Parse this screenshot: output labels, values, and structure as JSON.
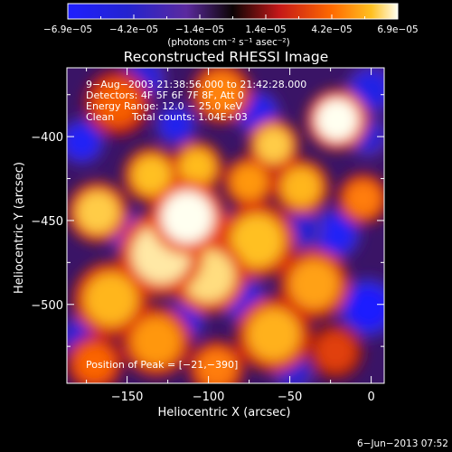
{
  "chart_data": {
    "type": "heatmap",
    "title": "Reconstructed RHESSI Image",
    "xlabel": "Heliocentric X (arcsec)",
    "ylabel": "Heliocentric Y (arcsec)",
    "xlim": [
      -187,
      8
    ],
    "ylim": [
      -547,
      -359
    ],
    "x_ticks": [
      -150,
      -100,
      -50,
      0
    ],
    "y_ticks": [
      -400,
      -450,
      -500
    ],
    "x_tick_labels": [
      "−150",
      "−100",
      "−50",
      "0"
    ],
    "y_tick_labels": [
      "−400",
      "−450",
      "−500"
    ],
    "colorbar": {
      "range": [
        -6.9e-05,
        6.9e-05
      ],
      "tick_labels": [
        "−6.9e−05",
        "−4.2e−05",
        "−1.4e−05",
        "1.4e−05",
        "4.2e−05",
        "6.9e−05"
      ],
      "unit_label": "(photons cm⁻² s⁻¹ asec⁻²)"
    },
    "annotations": {
      "time_range": "9−Aug−2003 21:38:56.000 to 21:42:28.000",
      "detectors": "Detectors: 4F 5F 6F 7F 8F, Att 0",
      "energy": "Energy Range: 12.0 − 25.0 keV",
      "method": "Clean",
      "counts": "Total counts: 1.04E+03",
      "peak": "Position of Peak = [−21,−390]"
    },
    "blobs": [
      {
        "x": -113,
        "y": -448,
        "value": 6.9e-05,
        "r": 16
      },
      {
        "x": -129,
        "y": -470,
        "value": 6.5e-05,
        "r": 18
      },
      {
        "x": -100,
        "y": -483,
        "value": 6.3e-05,
        "r": 16
      },
      {
        "x": -70,
        "y": -462,
        "value": 5.8e-05,
        "r": 16
      },
      {
        "x": -21,
        "y": -390,
        "value": 6.9e-05,
        "r": 13
      },
      {
        "x": -168,
        "y": -445,
        "value": 6e-05,
        "r": 13
      },
      {
        "x": -135,
        "y": -423,
        "value": 5.8e-05,
        "r": 12
      },
      {
        "x": -107,
        "y": -418,
        "value": 5.7e-05,
        "r": 11
      },
      {
        "x": -60,
        "y": -405,
        "value": 6e-05,
        "r": 11
      },
      {
        "x": -75,
        "y": -427,
        "value": 5e-05,
        "r": 11
      },
      {
        "x": -43,
        "y": -430,
        "value": 5.6e-05,
        "r": 12
      },
      {
        "x": -35,
        "y": -488,
        "value": 5.2e-05,
        "r": 15
      },
      {
        "x": -160,
        "y": -497,
        "value": 5.6e-05,
        "r": 16
      },
      {
        "x": -60,
        "y": -518,
        "value": 5.5e-05,
        "r": 16
      },
      {
        "x": -132,
        "y": -522,
        "value": 5e-05,
        "r": 15
      },
      {
        "x": -156,
        "y": -380,
        "value": 3.8e-05,
        "r": 14
      },
      {
        "x": -92,
        "y": -374,
        "value": 4.6e-05,
        "r": 13
      },
      {
        "x": -5,
        "y": -437,
        "value": 4.5e-05,
        "r": 11
      },
      {
        "x": -170,
        "y": -535,
        "value": 4e-05,
        "r": 12
      },
      {
        "x": -95,
        "y": -538,
        "value": 4.5e-05,
        "r": 12
      },
      {
        "x": -22,
        "y": -528,
        "value": 3e-05,
        "r": 12
      },
      {
        "x": -178,
        "y": -403,
        "value": -6.5e-05,
        "r": 10
      },
      {
        "x": -120,
        "y": -393,
        "value": -6e-05,
        "r": 9
      },
      {
        "x": -70,
        "y": -386,
        "value": -6e-05,
        "r": 10
      },
      {
        "x": -150,
        "y": -457,
        "value": -5.5e-05,
        "r": 9
      },
      {
        "x": -22,
        "y": -458,
        "value": -6.5e-05,
        "r": 11
      },
      {
        "x": -2,
        "y": -502,
        "value": -6.9e-05,
        "r": 13
      },
      {
        "x": -78,
        "y": -498,
        "value": -5.5e-05,
        "r": 10
      },
      {
        "x": -115,
        "y": -510,
        "value": -5.5e-05,
        "r": 9
      },
      {
        "x": -178,
        "y": -520,
        "value": -5e-05,
        "r": 10
      },
      {
        "x": -42,
        "y": -455,
        "value": -4.5e-05,
        "r": 9
      },
      {
        "x": -92,
        "y": -455,
        "value": -4e-05,
        "r": 8
      },
      {
        "x": 0,
        "y": -372,
        "value": -5.5e-05,
        "r": 11
      },
      {
        "x": -2,
        "y": -400,
        "value": -4.5e-05,
        "r": 9
      },
      {
        "x": -140,
        "y": -365,
        "value": -5e-05,
        "r": 10
      },
      {
        "x": -48,
        "y": -540,
        "value": -4.5e-05,
        "r": 9
      }
    ]
  },
  "footer": {
    "date": "6−Jun−2013 07:52"
  }
}
